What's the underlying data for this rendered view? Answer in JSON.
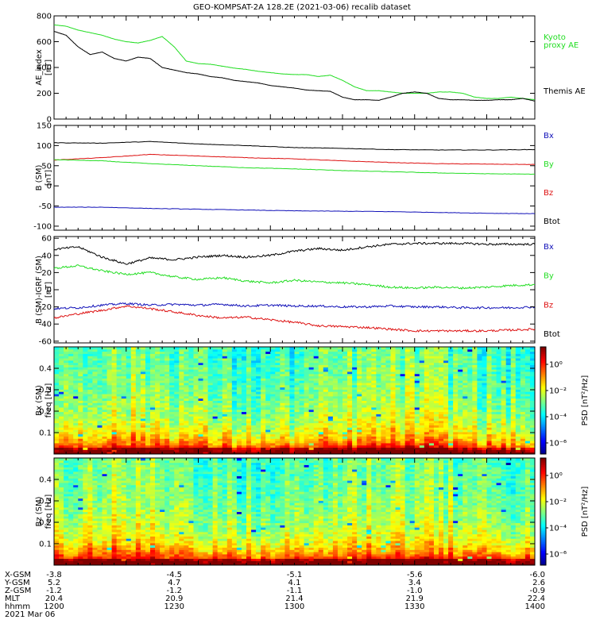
{
  "title": "GEO-KOMPSAT-2A 128.2E (2021-03-06) recalib dataset",
  "colors": {
    "kyoto": "#22dd22",
    "themis": "#000000",
    "bx": "#1010b8",
    "by": "#22dd22",
    "bz": "#dd1111",
    "btot": "#000000"
  },
  "chart_data": [
    {
      "type": "line",
      "panel": "ae",
      "ylabel": "AE_index",
      "yunit": "[nT]",
      "ylim": [
        0,
        800
      ],
      "yticks": [
        "0",
        "200",
        "400",
        "600",
        "800"
      ],
      "legend": [
        {
          "name": "Kyoto proxy AE",
          "lines": [
            "Kyoto",
            "proxy AE"
          ],
          "color": "#22dd22"
        },
        {
          "name": "Themis AE",
          "lines": [
            "Themis AE"
          ],
          "color": "#000000"
        }
      ],
      "series": [
        {
          "name": "Kyoto proxy AE",
          "color": "#22dd22",
          "x": [
            1200,
            1205,
            1210,
            1215,
            1220,
            1225,
            1230,
            1235,
            1240,
            1245,
            1250,
            1255,
            1260,
            1265,
            1270,
            1275,
            1280,
            1285,
            1290,
            1295,
            1300,
            1305,
            1310,
            1315,
            1320,
            1325,
            1330,
            1335,
            1340,
            1345,
            1350,
            1355,
            1360,
            1365,
            1370,
            1375,
            1380,
            1385,
            1390,
            1395,
            1400
          ],
          "values": [
            730,
            720,
            690,
            670,
            650,
            620,
            600,
            590,
            610,
            640,
            560,
            450,
            430,
            425,
            410,
            395,
            385,
            370,
            360,
            350,
            345,
            345,
            330,
            340,
            300,
            250,
            220,
            220,
            210,
            200,
            200,
            200,
            210,
            210,
            200,
            170,
            160,
            160,
            170,
            160,
            150
          ]
        },
        {
          "name": "Themis AE",
          "color": "#000000",
          "x": [
            1200,
            1205,
            1210,
            1215,
            1220,
            1225,
            1230,
            1235,
            1240,
            1245,
            1250,
            1255,
            1260,
            1265,
            1270,
            1275,
            1280,
            1285,
            1290,
            1295,
            1300,
            1305,
            1310,
            1315,
            1320,
            1325,
            1330,
            1335,
            1340,
            1345,
            1350,
            1355,
            1360,
            1365,
            1370,
            1375,
            1380,
            1385,
            1390,
            1395,
            1400
          ],
          "values": [
            680,
            650,
            560,
            500,
            520,
            470,
            450,
            480,
            470,
            400,
            380,
            360,
            350,
            330,
            320,
            300,
            290,
            280,
            260,
            250,
            240,
            225,
            220,
            215,
            170,
            150,
            150,
            145,
            170,
            200,
            210,
            200,
            160,
            150,
            150,
            145,
            145,
            150,
            150,
            160,
            140
          ]
        }
      ]
    },
    {
      "type": "line",
      "panel": "bsm",
      "ylabel": "B (SM)",
      "yunit": "[nT]",
      "ylim": [
        -110,
        150
      ],
      "yticks": [
        "-100",
        "-50",
        "0",
        "50",
        "100",
        "150"
      ],
      "legend": [
        {
          "name": "Bx",
          "lines": [
            "Bx"
          ],
          "color": "#1010b8"
        },
        {
          "name": "By",
          "lines": [
            "By"
          ],
          "color": "#22dd22"
        },
        {
          "name": "Bz",
          "lines": [
            "Bz"
          ],
          "color": "#dd1111"
        },
        {
          "name": "Btot",
          "lines": [
            "Btot"
          ],
          "color": "#000000"
        }
      ],
      "series": [
        {
          "name": "Btot",
          "color": "#000000",
          "x": [
            1200,
            1220,
            1240,
            1260,
            1280,
            1300,
            1320,
            1340,
            1360,
            1380,
            1400
          ],
          "values": [
            107,
            106,
            110,
            104,
            100,
            95,
            93,
            90,
            89,
            89,
            90
          ]
        },
        {
          "name": "Bz",
          "color": "#dd1111",
          "x": [
            1200,
            1220,
            1240,
            1260,
            1280,
            1300,
            1320,
            1340,
            1360,
            1380,
            1400
          ],
          "values": [
            64,
            70,
            78,
            74,
            70,
            67,
            62,
            58,
            55,
            54,
            53
          ]
        },
        {
          "name": "By",
          "color": "#22dd22",
          "x": [
            1200,
            1220,
            1240,
            1260,
            1280,
            1300,
            1320,
            1340,
            1360,
            1380,
            1400
          ],
          "values": [
            65,
            62,
            55,
            50,
            45,
            42,
            38,
            35,
            32,
            30,
            29
          ]
        },
        {
          "name": "Bx",
          "color": "#1010b8",
          "x": [
            1200,
            1220,
            1240,
            1260,
            1280,
            1300,
            1320,
            1340,
            1360,
            1380,
            1400
          ],
          "values": [
            -53,
            -53,
            -56,
            -58,
            -60,
            -62,
            -63,
            -64,
            -66,
            -68,
            -69
          ]
        }
      ]
    },
    {
      "type": "line",
      "panel": "bigrf",
      "ylabel": "B (SM)-IGRF (SM)",
      "yunit": "[nT]",
      "ylim": [
        -62,
        62
      ],
      "yticks": [
        "-60",
        "-40",
        "-20",
        "0",
        "20",
        "40",
        "60"
      ],
      "legend": [
        {
          "name": "Bx",
          "lines": [
            "Bx"
          ],
          "color": "#1010b8"
        },
        {
          "name": "By",
          "lines": [
            "By"
          ],
          "color": "#22dd22"
        },
        {
          "name": "Bz",
          "lines": [
            "Bz"
          ],
          "color": "#dd1111"
        },
        {
          "name": "Btot",
          "lines": [
            "Btot"
          ],
          "color": "#000000"
        }
      ],
      "series": [
        {
          "name": "Btot",
          "color": "#000000",
          "x": [
            1200,
            1210,
            1220,
            1230,
            1240,
            1250,
            1260,
            1270,
            1280,
            1290,
            1300,
            1310,
            1320,
            1330,
            1340,
            1350,
            1360,
            1370,
            1380,
            1390,
            1400
          ],
          "values": [
            47,
            50,
            38,
            30,
            37,
            35,
            38,
            40,
            38,
            40,
            45,
            48,
            46,
            50,
            53,
            54,
            54,
            54,
            53,
            53,
            53
          ]
        },
        {
          "name": "By",
          "color": "#22dd22",
          "x": [
            1200,
            1210,
            1220,
            1230,
            1240,
            1250,
            1260,
            1270,
            1280,
            1290,
            1300,
            1310,
            1320,
            1330,
            1340,
            1350,
            1360,
            1370,
            1380,
            1390,
            1400
          ],
          "values": [
            25,
            28,
            22,
            18,
            20,
            15,
            12,
            14,
            10,
            8,
            11,
            9,
            8,
            6,
            3,
            2,
            3,
            2,
            3,
            5,
            6
          ]
        },
        {
          "name": "Bx",
          "color": "#1010b8",
          "x": [
            1200,
            1210,
            1220,
            1230,
            1240,
            1250,
            1260,
            1270,
            1280,
            1290,
            1300,
            1310,
            1320,
            1330,
            1340,
            1350,
            1360,
            1370,
            1380,
            1390,
            1400
          ],
          "values": [
            -22,
            -21,
            -18,
            -16,
            -18,
            -17,
            -18,
            -17,
            -19,
            -18,
            -19,
            -19,
            -20,
            -20,
            -19,
            -20,
            -20,
            -21,
            -21,
            -21,
            -20
          ]
        },
        {
          "name": "Bz",
          "color": "#dd1111",
          "x": [
            1200,
            1210,
            1220,
            1230,
            1240,
            1250,
            1260,
            1270,
            1280,
            1290,
            1300,
            1310,
            1320,
            1330,
            1340,
            1350,
            1360,
            1370,
            1380,
            1390,
            1400
          ],
          "values": [
            -33,
            -28,
            -24,
            -19,
            -22,
            -26,
            -30,
            -33,
            -32,
            -35,
            -38,
            -42,
            -43,
            -44,
            -46,
            -48,
            -48,
            -48,
            -48,
            -47,
            -46
          ]
        }
      ]
    },
    {
      "type": "heatmap",
      "panel": "bx_spec",
      "ylabel": "Bx (SM)",
      "yunit": "freq [Hz]",
      "ylim": [
        0,
        0.5
      ],
      "yticks": [
        "0.1",
        "0.2",
        "0.3",
        "0.4"
      ],
      "colorbar_label": "PSD [nT²/Hz]",
      "colorbar_ticks": [
        "10⁰",
        "10⁻²",
        "10⁻⁴",
        "10⁻⁶"
      ]
    },
    {
      "type": "heatmap",
      "panel": "bz_spec",
      "ylabel": "Bz (SM)",
      "yunit": "freq [Hz]",
      "ylim": [
        0,
        0.5
      ],
      "yticks": [
        "0.1",
        "0.2",
        "0.3",
        "0.4"
      ],
      "colorbar_label": "PSD [nT²/Hz]",
      "colorbar_ticks": [
        "10⁰",
        "10⁻²",
        "10⁻⁴",
        "10⁻⁶"
      ]
    }
  ],
  "orbit_table": {
    "rows": [
      {
        "label": "X-GSM",
        "values": [
          "-3.8",
          "-4.5",
          "-5.1",
          "-5.6",
          "-6.0"
        ]
      },
      {
        "label": "Y-GSM",
        "values": [
          "5.2",
          "4.7",
          "4.1",
          "3.4",
          "2.6"
        ]
      },
      {
        "label": "Z-GSM",
        "values": [
          "-1.2",
          "-1.2",
          "-1.1",
          "-1.0",
          "-0.9"
        ]
      },
      {
        "label": "MLT",
        "values": [
          "20.4",
          "20.9",
          "21.4",
          "21.9",
          "22.4"
        ]
      },
      {
        "label": "hhmm",
        "values": [
          "1200",
          "1230",
          "1300",
          "1330",
          "1400"
        ]
      }
    ],
    "date": "2021 Mar 06"
  }
}
